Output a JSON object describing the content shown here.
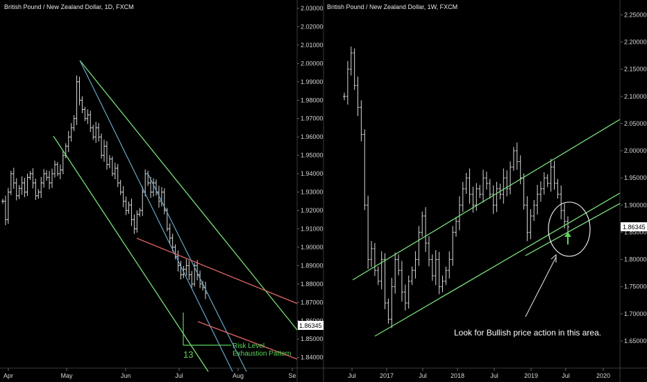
{
  "colors": {
    "background": "#000000",
    "candle": "#d9d9d9",
    "green_line": "#7be07b",
    "blue_line": "#6aa6c8",
    "red_line": "#e06666",
    "axis_text": "#d6d6d6",
    "price_tag_bg": "#ffffff",
    "price_tag_text": "#000000",
    "arrow_up": "#5cd65c",
    "circle": "#ffffff"
  },
  "chart_data": [
    {
      "type": "line",
      "title": "British Pound / New Zealand Dollar, 1D, FXCM",
      "xlabel": "",
      "ylabel": "",
      "x_ticks": [
        "Apr",
        "May",
        "Jun",
        "Jul",
        "Aug",
        "Se"
      ],
      "y_ticks": [
        "2.03000",
        "2.02000",
        "2.01000",
        "2.00000",
        "1.99000",
        "1.98000",
        "1.97000",
        "1.96000",
        "1.95000",
        "1.94000",
        "1.93000",
        "1.92000",
        "1.91000",
        "1.90000",
        "1.89000",
        "1.88000",
        "1.87000",
        "1.86000",
        "1.85000",
        "1.84000"
      ],
      "ylim": [
        1.8395,
        2.0315
      ],
      "last_price": "1.86345",
      "annotations": {
        "risk_level": "Risk Level",
        "exhaustion": "Exhaustion Pattern",
        "count": "13"
      },
      "series": [
        {
          "values": [
            1.925,
            1.915,
            1.93,
            1.94,
            1.935,
            1.928,
            1.932,
            1.935,
            1.93,
            1.938,
            1.94,
            1.935,
            1.928,
            1.93,
            1.935,
            1.94,
            1.938,
            1.935,
            1.94,
            1.945,
            1.94,
            1.942,
            1.95,
            1.955,
            1.96,
            1.965,
            1.97,
            1.99,
            1.98,
            1.975,
            1.97,
            1.972,
            1.965,
            1.96,
            1.965,
            1.96,
            1.95,
            1.955,
            1.945,
            1.948,
            1.94,
            1.943,
            1.935,
            1.93,
            1.925,
            1.92,
            1.923,
            1.915,
            1.91,
            1.918,
            1.92,
            1.93,
            1.94,
            1.935,
            1.93,
            1.935,
            1.93,
            1.925,
            1.93,
            1.92,
            1.91,
            1.905,
            1.9,
            1.895,
            1.89,
            1.885,
            1.888,
            1.89,
            1.885,
            1.88,
            1.89,
            1.885,
            1.88,
            1.878,
            1.875
          ]
        }
      ]
    },
    {
      "type": "line",
      "title": "British Pound / New Zealand Dollar, 1W, FXCM",
      "xlabel": "",
      "ylabel": "",
      "x_ticks": [
        "Jul",
        "2017",
        "Jul",
        "2018",
        "Jul",
        "2019",
        "Jul",
        "2020"
      ],
      "y_ticks": [
        "2.25000",
        "2.20000",
        "2.15000",
        "2.10000",
        "2.05000",
        "2.00000",
        "1.95000",
        "1.90000",
        "1.85000",
        "1.80000",
        "1.75000",
        "1.70000",
        "1.65000"
      ],
      "ylim": [
        1.618,
        2.262
      ],
      "last_price": "1.86345",
      "annotations": {
        "note": "Look for Bullish price action in this area."
      },
      "series": [
        {
          "values": [
            2.1,
            2.15,
            2.18,
            2.12,
            2.08,
            2.03,
            1.9,
            1.8,
            1.82,
            1.78,
            1.76,
            1.8,
            1.72,
            1.69,
            1.75,
            1.8,
            1.78,
            1.74,
            1.72,
            1.76,
            1.78,
            1.8,
            1.85,
            1.88,
            1.83,
            1.8,
            1.77,
            1.8,
            1.75,
            1.76,
            1.78,
            1.8,
            1.85,
            1.87,
            1.9,
            1.93,
            1.95,
            1.92,
            1.9,
            1.93,
            1.92,
            1.95,
            1.94,
            1.92,
            1.9,
            1.93,
            1.92,
            1.95,
            1.93,
            1.97,
            2.0,
            1.98,
            1.95,
            1.9,
            1.85,
            1.88,
            1.9,
            1.92,
            1.93,
            1.95,
            1.94,
            1.97,
            1.94,
            1.92,
            1.89,
            1.87,
            1.86
          ]
        }
      ]
    }
  ]
}
